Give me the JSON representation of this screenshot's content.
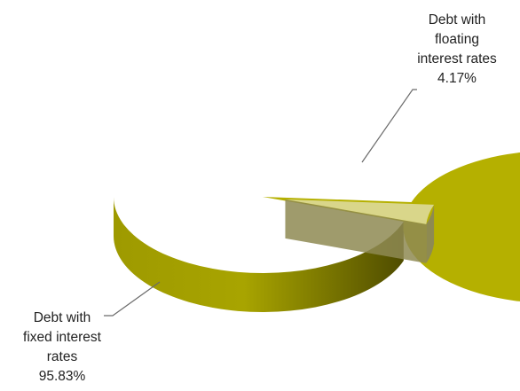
{
  "chart_data": {
    "type": "pie",
    "title": "",
    "labels": [
      "Debt with fixed interest rates",
      "Debt with floating interest rates"
    ],
    "values": [
      95.83,
      4.17
    ],
    "value_labels": [
      "95.83%",
      "4.17%"
    ],
    "label_lines": [
      [
        "Debt with",
        "fixed interest",
        "rates",
        "95.83%"
      ],
      [
        "Debt with",
        "floating",
        "interest rates",
        "4.17%"
      ]
    ],
    "legend": "none",
    "style": "3d-exploded",
    "colors": {
      "fixed_top": "#B5B000",
      "fixed_side_light": "#9E9A00",
      "fixed_side_dark": "#4F4C00",
      "floating_top": "#D9D68A",
      "floating_side": "#8E8A52",
      "leader_line": "#6B6B6B"
    }
  }
}
